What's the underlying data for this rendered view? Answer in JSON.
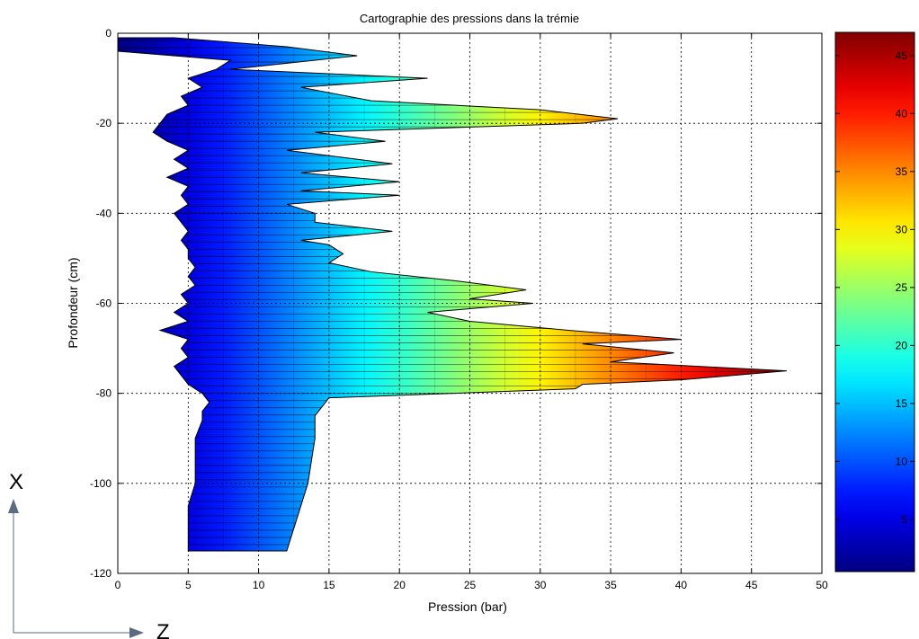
{
  "chart_data": {
    "type": "area",
    "title": "Cartographie des pressions dans la trémie",
    "xlabel": "Pression (bar)",
    "ylabel": "Profondeur (cm)",
    "xlim": [
      0,
      50
    ],
    "ylim": [
      -120,
      0
    ],
    "xticks": [
      0,
      5,
      10,
      15,
      20,
      25,
      30,
      35,
      40,
      45,
      50
    ],
    "yticks": [
      0,
      -20,
      -40,
      -60,
      -80,
      -100,
      -120
    ],
    "grid": true,
    "colormap": "jet",
    "colorbar": {
      "clim": [
        0.5,
        47
      ],
      "ticks": [
        5,
        10,
        15,
        20,
        25,
        30,
        35,
        40,
        45
      ]
    },
    "outer_profile": {
      "depth": [
        -1,
        -3,
        -5,
        -8,
        -10,
        -12,
        -15,
        -17,
        -19,
        -20,
        -22,
        -24,
        -26,
        -29,
        -31,
        -33,
        -35,
        -36,
        -38,
        -40,
        -42,
        -44,
        -46,
        -47,
        -49,
        -51,
        -53,
        -55,
        -57,
        -59,
        -60,
        -62,
        -64,
        -66,
        -68,
        -69,
        -71,
        -73,
        -75,
        -77,
        -78,
        -79,
        -81,
        -83,
        -85,
        -90,
        -100,
        -110,
        -115
      ],
      "pressure": [
        4,
        12,
        17,
        8,
        22,
        13,
        18,
        30,
        35.5,
        33,
        14,
        19,
        12,
        19.5,
        13,
        20,
        13,
        20,
        12,
        14,
        14,
        19.5,
        13,
        15,
        16,
        15,
        18,
        24,
        29,
        25,
        29.5,
        22,
        25,
        32,
        40,
        33,
        39.5,
        35,
        47.5,
        40,
        33,
        32.5,
        15,
        14.5,
        14,
        14,
        13.5,
        12.5,
        12
      ]
    },
    "inner_profile": {
      "depth": [
        -1,
        -4,
        -6,
        -8,
        -10,
        -12,
        -14,
        -16,
        -18,
        -20,
        -22,
        -24,
        -26,
        -28,
        -30,
        -32,
        -34,
        -36,
        -38,
        -40,
        -42,
        -44,
        -46,
        -48,
        -50,
        -52,
        -54,
        -56,
        -58,
        -60,
        -62,
        -64,
        -66,
        -68,
        -70,
        -72,
        -74,
        -76,
        -78,
        -80,
        -82,
        -84,
        -86,
        -90,
        -95,
        -100,
        -105,
        -110,
        -115
      ],
      "pressure": [
        0,
        0,
        8,
        7,
        5,
        6,
        4.5,
        5,
        3.5,
        3,
        2.5,
        3.5,
        5,
        4,
        5,
        3.5,
        5,
        4.5,
        5,
        4,
        4.5,
        5,
        4.5,
        5,
        5,
        5.5,
        5,
        5.5,
        4.5,
        5,
        4,
        5,
        3,
        5,
        4.5,
        5,
        4,
        4.5,
        5,
        6,
        6.5,
        6,
        6,
        5.5,
        5.5,
        5.5,
        5,
        5,
        5
      ]
    }
  },
  "annotations": {
    "x_arrow_label": "X",
    "z_arrow_label": "Z"
  }
}
